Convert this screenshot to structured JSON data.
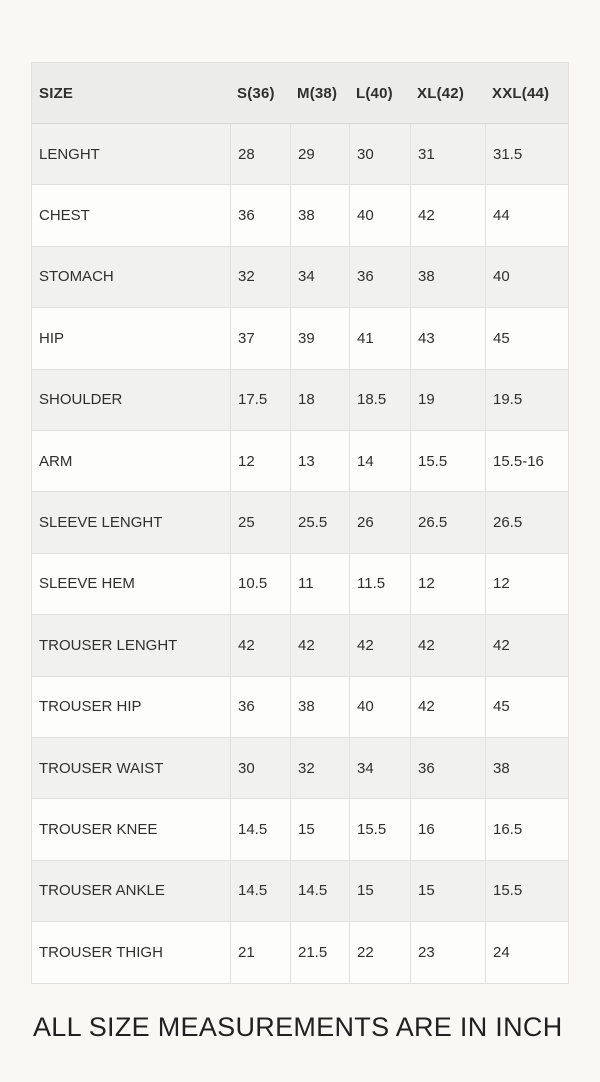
{
  "colors": {
    "page_bg": "#f9f8f5",
    "header_bg": "#ececea",
    "stripe_bg": "#f1f1ef",
    "row_bg": "#fdfdfc",
    "border": "#e2e1de",
    "text": "#2f2f2f"
  },
  "table": {
    "columns": [
      "SIZE",
      "S(36)",
      "M(38)",
      "L(40)",
      "XL(42)",
      "XXL(44)"
    ],
    "rows": [
      {
        "label": "LENGHT",
        "values": [
          "28",
          "29",
          "30",
          "31",
          "31.5"
        ]
      },
      {
        "label": "CHEST",
        "values": [
          "36",
          "38",
          "40",
          "42",
          "44"
        ]
      },
      {
        "label": "STOMACH",
        "values": [
          "32",
          "34",
          "36",
          "38",
          "40"
        ]
      },
      {
        "label": "HIP",
        "values": [
          "37",
          "39",
          "41",
          "43",
          "45"
        ]
      },
      {
        "label": "SHOULDER",
        "values": [
          "17.5",
          "18",
          "18.5",
          "19",
          "19.5"
        ]
      },
      {
        "label": "ARM",
        "values": [
          "12",
          "13",
          "14",
          "15.5",
          "15.5-16"
        ]
      },
      {
        "label": "SLEEVE LENGHT",
        "values": [
          "25",
          "25.5",
          "26",
          "26.5",
          "26.5"
        ]
      },
      {
        "label": "SLEEVE HEM",
        "values": [
          "10.5",
          "11",
          "11.5",
          "12",
          "12"
        ]
      },
      {
        "label": "TROUSER LENGHT",
        "values": [
          "42",
          "42",
          "42",
          "42",
          "42"
        ]
      },
      {
        "label": "TROUSER HIP",
        "values": [
          "36",
          "38",
          "40",
          "42",
          "45"
        ]
      },
      {
        "label": "TROUSER WAIST",
        "values": [
          "30",
          "32",
          "34",
          "36",
          "38"
        ]
      },
      {
        "label": "TROUSER KNEE",
        "values": [
          "14.5",
          "15",
          "15.5",
          "16",
          "16.5"
        ]
      },
      {
        "label": "TROUSER ANKLE",
        "values": [
          "14.5",
          "14.5",
          "15",
          "15",
          "15.5"
        ]
      },
      {
        "label": "TROUSER THIGH",
        "values": [
          "21",
          "21.5",
          "22",
          "23",
          "24"
        ]
      }
    ]
  },
  "footer": {
    "note": "ALL SIZE MEASUREMENTS ARE IN INCH"
  }
}
